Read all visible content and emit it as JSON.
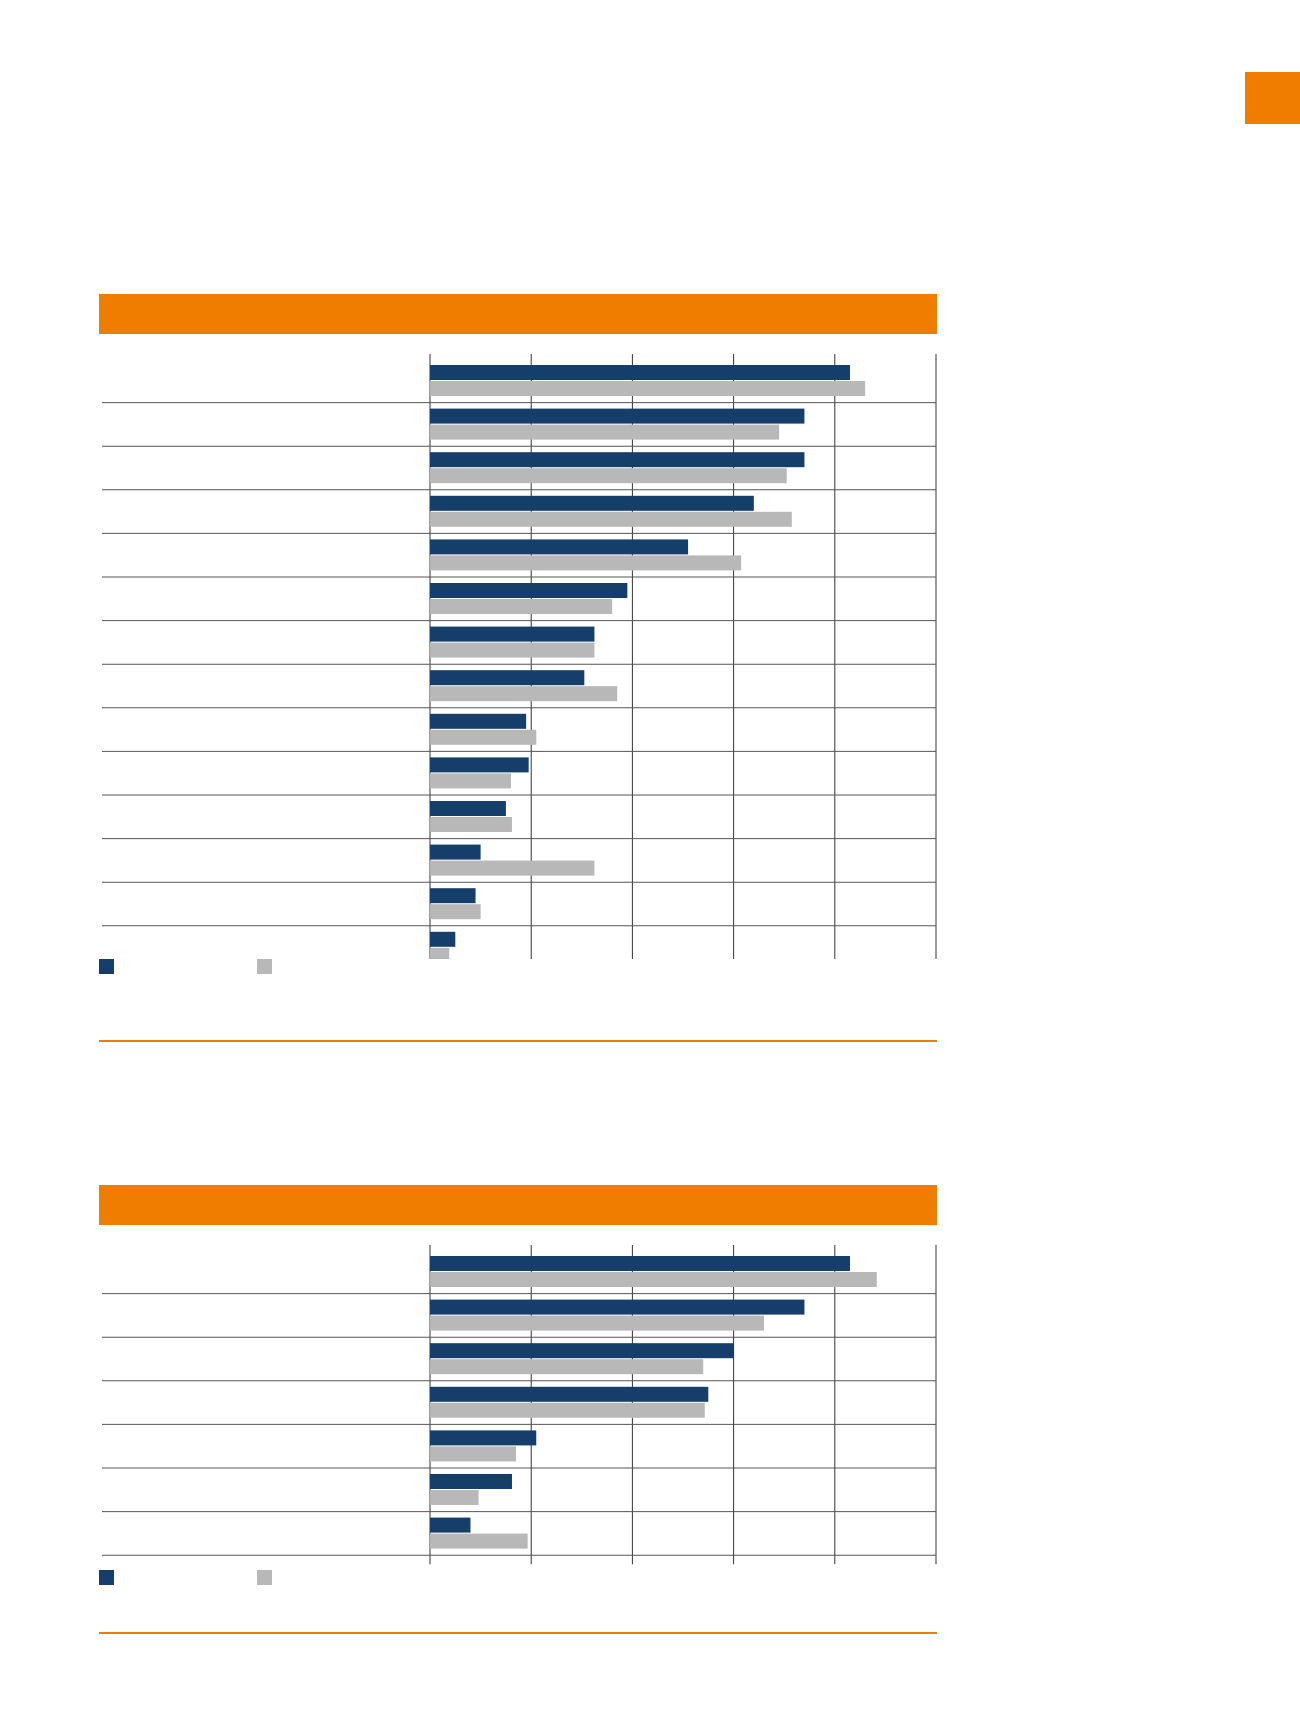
{
  "colors": {
    "accent": "#ef7d00",
    "series_primary": "#153e6b",
    "series_secondary": "#b8b8b9",
    "grid": "#333333",
    "divider": "#555555"
  },
  "chart_data": [
    {
      "type": "bar",
      "orientation": "horizontal",
      "title": "",
      "categories": [
        "",
        "",
        "",
        "",
        "",
        "",
        "",
        "",
        "",
        "",
        "",
        "",
        "",
        ""
      ],
      "series": [
        {
          "values": [
            83,
            74,
            74,
            64,
            51,
            39,
            32.5,
            30.5,
            19,
            19.5,
            15,
            10,
            9,
            5
          ]
        },
        {
          "values": [
            86,
            69,
            70.5,
            71.5,
            61.5,
            36,
            32.5,
            37,
            21,
            16,
            16.2,
            32.5,
            10,
            3.8
          ]
        }
      ],
      "xlim": [
        0,
        100
      ],
      "grid": true,
      "legend": "bottom-left"
    },
    {
      "type": "bar",
      "orientation": "horizontal",
      "title": "",
      "categories": [
        "",
        "",
        "",
        "",
        "",
        "",
        ""
      ],
      "series": [
        {
          "values": [
            83,
            74,
            60,
            55,
            21,
            16.2,
            8
          ]
        },
        {
          "values": [
            88.3,
            66,
            54,
            54.3,
            17,
            9.6,
            19.3
          ]
        }
      ],
      "xlim": [
        0,
        100
      ],
      "grid": true,
      "legend": "bottom-left"
    }
  ]
}
